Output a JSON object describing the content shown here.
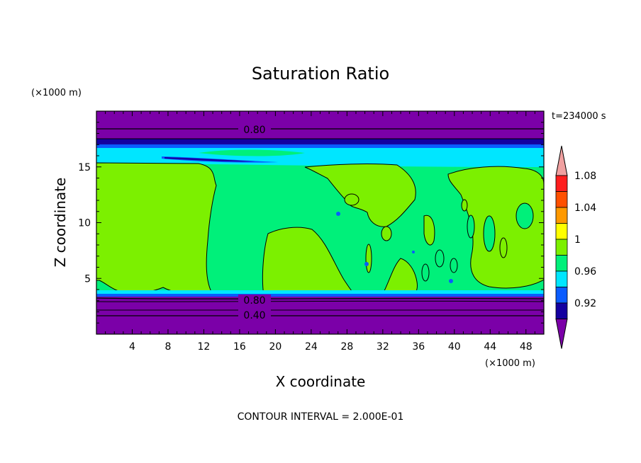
{
  "chart_data": {
    "type": "contour",
    "title": "Saturation Ratio",
    "xlabel": "X coordinate",
    "ylabel": "Z coordinate",
    "x_unit": "(×1000 m)",
    "y_unit": "(×1000 m)",
    "time_label": "t=234000 s",
    "footer": "CONTOUR INTERVAL = 2.000E-01",
    "xlim": [
      0,
      50
    ],
    "ylim": [
      0,
      20
    ],
    "x_ticks": [
      "4",
      "8",
      "12",
      "16",
      "20",
      "24",
      "28",
      "32",
      "36",
      "40",
      "44",
      "48"
    ],
    "y_ticks": [
      "5",
      "10",
      "15"
    ],
    "contour_labels": [
      "0.80",
      "0.80",
      "0.40"
    ],
    "colorbar": {
      "labels": [
        "0.92",
        "0.96",
        "1",
        "1.04",
        "1.08"
      ],
      "levels": [
        0.9,
        0.92,
        0.94,
        0.96,
        0.98,
        1.0,
        1.02,
        1.04,
        1.06,
        1.08,
        1.1
      ],
      "colors": [
        "#7b00a8",
        "#1400a0",
        "#0a5cff",
        "#00e6ff",
        "#00f07a",
        "#7cf000",
        "#ffff00",
        "#ff9900",
        "#ff5000",
        "#ff1e1e",
        "#f0a0a0"
      ]
    },
    "regions": [
      {
        "x": [
          0,
          50
        ],
        "z": [
          17,
          20
        ],
        "value": 0.8
      },
      {
        "x": [
          0,
          50
        ],
        "z": [
          16.5,
          17
        ],
        "value": 0.94
      },
      {
        "x": [
          0,
          50
        ],
        "z": [
          15.3,
          16.5
        ],
        "value": 0.97
      },
      {
        "x": [
          0,
          50
        ],
        "z": [
          3.5,
          15.3
        ],
        "value": 0.99
      },
      {
        "x": [
          0,
          12.8
        ],
        "z": [
          4,
          15.3
        ],
        "value": 1.01
      },
      {
        "x": [
          18.5,
          28
        ],
        "z": [
          3.5,
          15.3
        ],
        "value": 1.01
      },
      {
        "x": [
          18.5,
          28
        ],
        "z": [
          3.5,
          10.2
        ],
        "value": 1.01
      },
      {
        "x": [
          0,
          50
        ],
        "z": [
          0,
          3.5
        ],
        "value": 0.6
      }
    ]
  }
}
